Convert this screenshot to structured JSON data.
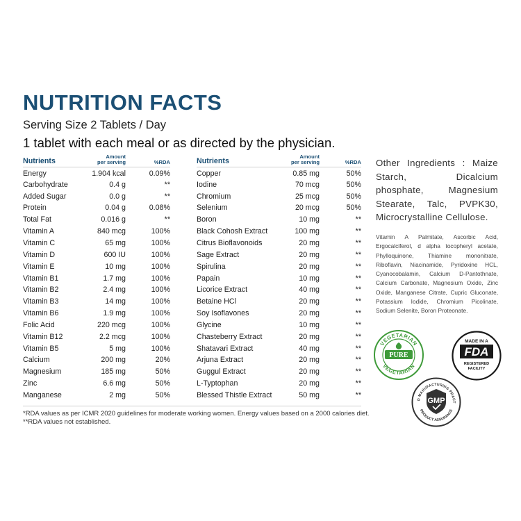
{
  "title": "NUTRITION FACTS",
  "serving_size": "Serving Size 2 Tablets / Day",
  "directions": "1 tablet with each meal or as directed by the physician.",
  "table_headers": {
    "nutrients": "Nutrients",
    "amount_line1": "Amount",
    "amount_line2": "per serving",
    "rda": "%RDA"
  },
  "left_rows": [
    {
      "name": "Energy",
      "amount": "1.904 kcal",
      "rda": "0.09%"
    },
    {
      "name": "Carbohydrate",
      "amount": "0.4 g",
      "rda": "**"
    },
    {
      "name": "Added Sugar",
      "amount": "0.0 g",
      "rda": "**"
    },
    {
      "name": "Protein",
      "amount": "0.04 g",
      "rda": "0.08%"
    },
    {
      "name": "Total Fat",
      "amount": "0.016 g",
      "rda": "**"
    },
    {
      "name": "Vitamin A",
      "amount": "840 mcg",
      "rda": "100%"
    },
    {
      "name": "Vitamin C",
      "amount": "65 mg",
      "rda": "100%"
    },
    {
      "name": "Vitamin D",
      "amount": "600 IU",
      "rda": "100%"
    },
    {
      "name": "Vitamin E",
      "amount": "10 mg",
      "rda": "100%"
    },
    {
      "name": "Vitamin B1",
      "amount": "1.7 mg",
      "rda": "100%"
    },
    {
      "name": "Vitamin B2",
      "amount": "2.4 mg",
      "rda": "100%"
    },
    {
      "name": "Vitamin B3",
      "amount": "14 mg",
      "rda": "100%"
    },
    {
      "name": "Vitamin B6",
      "amount": "1.9 mg",
      "rda": "100%"
    },
    {
      "name": "Folic Acid",
      "amount": "220 mcg",
      "rda": "100%"
    },
    {
      "name": "Vitamin B12",
      "amount": "2.2 mcg",
      "rda": "100%"
    },
    {
      "name": "Vitamin B5",
      "amount": "5 mg",
      "rda": "100%"
    },
    {
      "name": "Calcium",
      "amount": "200 mg",
      "rda": "20%"
    },
    {
      "name": "Magnesium",
      "amount": "185 mg",
      "rda": "50%"
    },
    {
      "name": "Zinc",
      "amount": "6.6 mg",
      "rda": "50%"
    },
    {
      "name": "Manganese",
      "amount": "2 mg",
      "rda": "50%"
    }
  ],
  "right_rows": [
    {
      "name": "Copper",
      "amount": "0.85 mg",
      "rda": "50%"
    },
    {
      "name": "Iodine",
      "amount": "70 mcg",
      "rda": "50%"
    },
    {
      "name": "Chromium",
      "amount": "25 mcg",
      "rda": "50%"
    },
    {
      "name": "Selenium",
      "amount": "20 mcg",
      "rda": "50%"
    },
    {
      "name": "Boron",
      "amount": "10 mg",
      "rda": "**"
    },
    {
      "name": "Black Cohosh Extract",
      "amount": "100 mg",
      "rda": "**"
    },
    {
      "name": "Citrus Bioflavonoids",
      "amount": "20 mg",
      "rda": "**"
    },
    {
      "name": "Sage Extract",
      "amount": "20 mg",
      "rda": "**"
    },
    {
      "name": "Spirulina",
      "amount": "20 mg",
      "rda": "**"
    },
    {
      "name": "Papain",
      "amount": "10 mg",
      "rda": "**"
    },
    {
      "name": "Licorice Extract",
      "amount": "40 mg",
      "rda": "**"
    },
    {
      "name": "Betaine HCl",
      "amount": "20 mg",
      "rda": "**"
    },
    {
      "name": "Soy Isoflavones",
      "amount": "20 mg",
      "rda": "**"
    },
    {
      "name": "Glycine",
      "amount": "10 mg",
      "rda": "**"
    },
    {
      "name": "Chasteberry Extract",
      "amount": "20 mg",
      "rda": "**"
    },
    {
      "name": "Shatavari Extract",
      "amount": "40 mg",
      "rda": "**"
    },
    {
      "name": "Arjuna Extract",
      "amount": "20 mg",
      "rda": "**"
    },
    {
      "name": "Guggul Extract",
      "amount": "20 mg",
      "rda": "**"
    },
    {
      "name": "L-Typtophan",
      "amount": "20 mg",
      "rda": "**"
    },
    {
      "name": "Blessed Thistle Extract",
      "amount": "50 mg",
      "rda": "**"
    }
  ],
  "footnote_1": "*RDA values as per ICMR 2020 guidelines for moderate working women. Energy values based on a 2000 calories diet.",
  "footnote_2": "**RDA values not established.",
  "other_ingredients": "Other Ingredients : Maize Starch, Dicalcium phosphate, Magnesium Stearate, Talc, PVPK30, Microcrystalline Cellulose.",
  "vitamin_sources": "Vitamin A Palmitate, Ascorbic Acid, Ergocalciferol, d alpha tocopheryl acetate, Phylloquinone, Thiamine mononitrate, Riboflavin, Niacinamide, Pyridoxine HCL, Cyanocobalamin, Calcium D-Pantothnate, Calcium Carbonate, Magnesium Oxide, Zinc Oxide, Manganese Citrate, Cupric Gluconate, Potassium Iodide, Chromium Picolinate, Sodium Selenite, Boron Proteonate.",
  "badges": {
    "vegetarian": {
      "top_text": "VEGETARIAN",
      "center_text": "PURE",
      "bottom_text": "VEGETARIAN",
      "icon": "leaf-icon",
      "color": "#3f9b3a"
    },
    "fda": {
      "top_text": "MADE IN A",
      "logo_text": "FDA",
      "bottom_line1": "REGISTERED",
      "bottom_line2": "FACILITY",
      "color": "#1a1a1a"
    },
    "gmp": {
      "ring_text": "GOOD MANUFACTURING PRACTICE",
      "center_text": "GMP",
      "bottom_text": "PRODUCT ASSURANCE",
      "icon": "check-icon",
      "color": "#333333"
    }
  },
  "colors": {
    "title": "#1b4f74",
    "header": "#1b4f74",
    "text": "#1e1e1e",
    "rule": "#cfcfcf"
  }
}
